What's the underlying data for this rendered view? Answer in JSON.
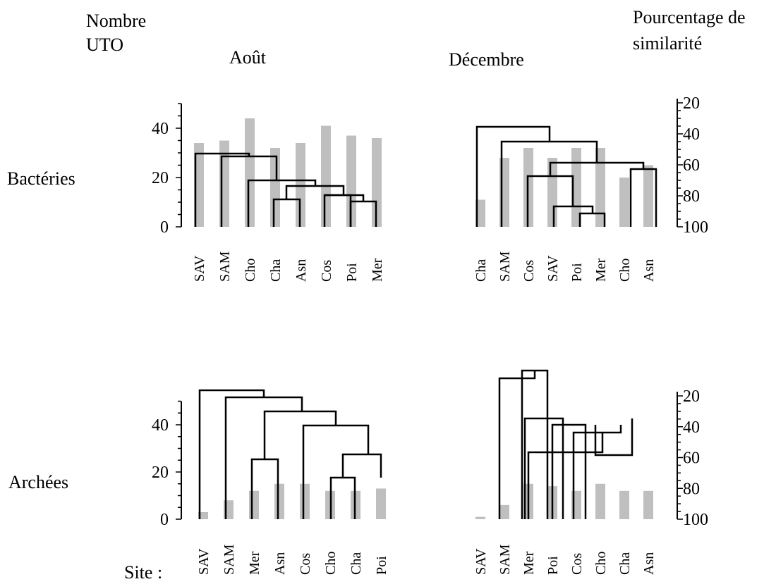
{
  "labels": {
    "left_axis_title_line1": "Nombre",
    "left_axis_title_line2": "UTO",
    "right_axis_title_line1": "Pourcentage de",
    "right_axis_title_line2": "similarité",
    "site_prefix": "Site :"
  },
  "chart_data": [
    {
      "type": "bar",
      "title": "Août",
      "row_label": "Bactéries",
      "categories": [
        "SAV",
        "SAM",
        "Cho",
        "Cha",
        "Asn",
        "Cos",
        "Poi",
        "Mer"
      ],
      "values": [
        34,
        35,
        44,
        32,
        34,
        41,
        37,
        36
      ],
      "ylim": [
        0,
        50
      ],
      "yticks": [
        0,
        20,
        40
      ],
      "dendrogram": "similarity"
    },
    {
      "type": "bar",
      "title": "Décembre",
      "row_label": "",
      "categories": [
        "Cha",
        "SAM",
        "Cos",
        "SAV",
        "Poi",
        "Mer",
        "Cho",
        "Asn"
      ],
      "values": [
        11,
        28,
        32,
        28,
        32,
        32,
        20,
        25
      ],
      "ylim": [
        0,
        50
      ],
      "similarity_ticks": [
        20,
        40,
        60,
        80,
        100
      ],
      "dendrogram": "similarity"
    },
    {
      "type": "bar",
      "title": "",
      "row_label": "Archées",
      "categories": [
        "SAV",
        "SAM",
        "Mer",
        "Asn",
        "Cos",
        "Cho",
        "Cha",
        "Poi"
      ],
      "values": [
        3,
        8,
        12,
        15,
        15,
        12,
        12,
        13
      ],
      "ylim": [
        0,
        50
      ],
      "yticks": [
        0,
        20,
        40
      ],
      "dendrogram": "similarity"
    },
    {
      "type": "bar",
      "title": "",
      "row_label": "",
      "categories": [
        "SAV",
        "SAM",
        "Mer",
        "Poi",
        "Cos",
        "Cho",
        "Cha",
        "Asn"
      ],
      "values": [
        1,
        6,
        15,
        14,
        12,
        15,
        12,
        12
      ],
      "ylim": [
        0,
        50
      ],
      "similarity_ticks": [
        20,
        40,
        60,
        80,
        100
      ],
      "dendrogram": "similarity"
    }
  ]
}
